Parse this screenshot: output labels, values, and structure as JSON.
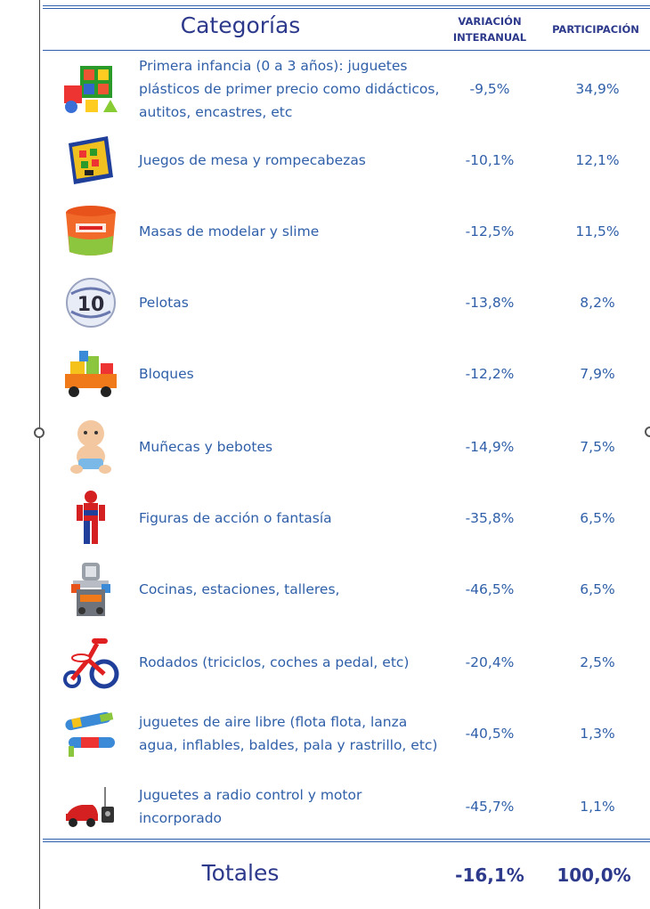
{
  "header": {
    "title": "Categorías",
    "col_variation": "VARIACIÓN INTERANUAL",
    "col_share": "PARTICIPACIÓN"
  },
  "rows": [
    {
      "icon": "baby-toys-icon",
      "label": "Primera infancia (0 a 3 años): juguetes plásticos de primer precio como didácticos, autitos, encastres, etc",
      "variation": "-9,5%",
      "share": "34,9%"
    },
    {
      "icon": "board-game-icon",
      "label": "Juegos de mesa y rompecabezas",
      "variation": "-10,1%",
      "share": "12,1%"
    },
    {
      "icon": "modeling-clay-icon",
      "label": "Masas de modelar y slime",
      "variation": "-12,5%",
      "share": "11,5%"
    },
    {
      "icon": "ball-icon",
      "label": "Pelotas",
      "variation": "-13,8%",
      "share": "8,2%"
    },
    {
      "icon": "blocks-icon",
      "label": "Bloques",
      "variation": "-12,2%",
      "share": "7,9%"
    },
    {
      "icon": "doll-icon",
      "label": "Muñecas y bebotes",
      "variation": "-14,9%",
      "share": "7,5%"
    },
    {
      "icon": "action-figure-icon",
      "label": "Figuras de acción o fantasía",
      "variation": "-35,8%",
      "share": "6,5%"
    },
    {
      "icon": "kitchen-playset-icon",
      "label": "Cocinas, estaciones, talleres,",
      "variation": "-46,5%",
      "share": "6,5%"
    },
    {
      "icon": "tricycle-icon",
      "label": "Rodados (triciclos, coches a pedal, etc)",
      "variation": "-20,4%",
      "share": "2,5%"
    },
    {
      "icon": "water-toys-icon",
      "label": "juguetes de aire libre (flota flota, lanza agua, inflables, baldes, pala y rastrillo, etc)",
      "variation": "-40,5%",
      "share": "1,3%"
    },
    {
      "icon": "rc-car-icon",
      "label": "Juguetes a radio control y motor incorporado",
      "variation": "-45,7%",
      "share": "1,1%"
    }
  ],
  "totals": {
    "label": "Totales",
    "variation": "-16,1%",
    "share": "100,0%"
  },
  "colors": {
    "title": "#2d3a8c",
    "text": "#2f5fa8",
    "rule": "#2f5fa8"
  }
}
